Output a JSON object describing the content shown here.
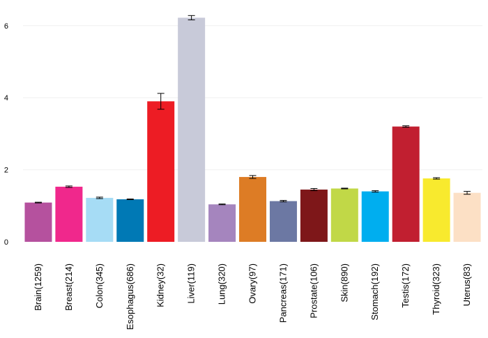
{
  "chart_data": {
    "type": "bar",
    "title": "",
    "xlabel": "",
    "ylabel": "",
    "ylim": [
      0,
      6.4
    ],
    "yticks": [
      0,
      2,
      4,
      6
    ],
    "grid": true,
    "legend": "none",
    "categories": [
      "Brain(1259)",
      "Breast(214)",
      "Colon(345)",
      "Esophagus(686)",
      "Kidney(32)",
      "Liver(119)",
      "Lung(320)",
      "Ovary(97)",
      "Pancreas(171)",
      "Prostate(106)",
      "Skin(890)",
      "Stomach(192)",
      "Testis(172)",
      "Thyroid(323)",
      "Uterus(83)"
    ],
    "values": [
      1.09,
      1.53,
      1.22,
      1.18,
      3.9,
      6.22,
      1.04,
      1.8,
      1.13,
      1.45,
      1.48,
      1.4,
      3.2,
      1.76,
      1.36
    ],
    "errors": [
      0.01,
      0.02,
      0.02,
      0.01,
      0.22,
      0.06,
      0.01,
      0.04,
      0.02,
      0.03,
      0.01,
      0.02,
      0.02,
      0.02,
      0.04
    ],
    "colors": [
      "#b5519e",
      "#f0288c",
      "#a6dcf5",
      "#0079b5",
      "#ed1c24",
      "#c8cad9",
      "#a585be",
      "#dd7c25",
      "#6c78a3",
      "#7e1719",
      "#c1d847",
      "#00aeef",
      "#c11f30",
      "#f8ea2e",
      "#fce0c5"
    ]
  }
}
